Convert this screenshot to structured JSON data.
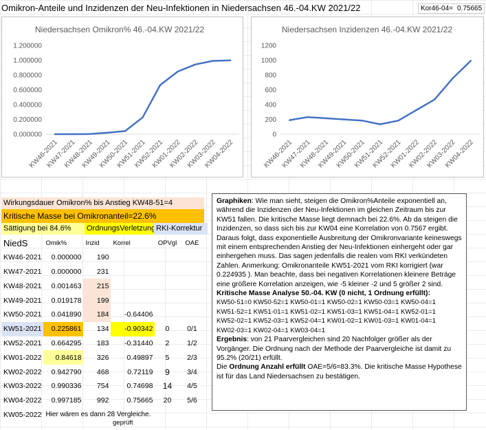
{
  "title": "Omikron-Anteile und Inzidenzen der Neu-Infektionen in Niedersachsen 46.-04.KW 2021/22",
  "kor": {
    "label": "Kor46-04=",
    "value": "0.75665"
  },
  "colors": {
    "line": "#4472c4",
    "peach": "#fbe4d5",
    "orange": "#ffc000",
    "yellow": "#ffff00",
    "lightblue": "#dae3f3",
    "lightyellow": "#ffff99"
  },
  "chart_data": [
    {
      "type": "line",
      "title": "Niedersachsen Omikron%  46.-04.KW    2021/22",
      "categories": [
        "KW46-2021",
        "KW47-2021",
        "KW48-2021",
        "KW49-2021",
        "KW50-2021",
        "KW51-2021",
        "KW52-2021",
        "KW01-2022",
        "KW02-2022",
        "KW03-2022",
        "KW04-2022"
      ],
      "values": [
        0.0,
        0.0,
        0.001463,
        0.019178,
        0.04189,
        0.225861,
        0.664295,
        0.84618,
        0.94279,
        0.990336,
        0.997185
      ],
      "ylim": [
        0,
        1.2
      ],
      "yticks": [
        "0.000000",
        "0.200000",
        "0.400000",
        "0.600000",
        "0.800000",
        "1.000000",
        "1.200000"
      ],
      "grid": false
    },
    {
      "type": "line",
      "title": "Niedersachsen Inzidenzen 46.-04.KW 2021/22",
      "categories": [
        "KW46-2021",
        "KW47-2021",
        "KW48-2021",
        "KW49-2021",
        "KW50-2021",
        "KW51-2021",
        "KW52-2021",
        "KW01-2022",
        "KW02-2022",
        "KW03-2022",
        "KW04-2022"
      ],
      "values": [
        190,
        231,
        215,
        199,
        184,
        134,
        183,
        326,
        468,
        754,
        992
      ],
      "ylim": [
        0,
        1200
      ],
      "yticks": [
        "0",
        "200",
        "400",
        "600",
        "800",
        "1000",
        "1200"
      ],
      "grid": false
    }
  ],
  "left": {
    "wirkungsdauer": "Wirkungsdauer Omikron% bis Anstieg KW48-51=4",
    "kritische": "Kritische Masse bei Omikronanteil=22.6%",
    "saettigung": "Sättigung bei 84.6%",
    "ordnungs": "OrdnungsVerletzung",
    "rki": "RKI-Korrektur",
    "headers": {
      "kw": "NiedS",
      "om": "Omik%",
      "in": "Inzid",
      "ko": "Korrel",
      "op": "OPVgl",
      "oa": "OAE"
    },
    "rows": [
      {
        "kw": "KW46-2021",
        "om": "0.000000",
        "in": "190",
        "ko": "",
        "op": "",
        "oa": ""
      },
      {
        "kw": "KW47-2021",
        "om": "0.000000",
        "in": "231",
        "ko": "",
        "op": "",
        "oa": ""
      },
      {
        "kw": "KW48-2021",
        "om": "0.001463",
        "in": "215",
        "ko": "",
        "op": "",
        "oa": ""
      },
      {
        "kw": "KW49-2021",
        "om": "0.019178",
        "in": "199",
        "ko": "",
        "op": "",
        "oa": ""
      },
      {
        "kw": "KW50-2021",
        "om": "0.041890",
        "in": "184",
        "ko": "-0.64406",
        "op": "",
        "oa": ""
      },
      {
        "kw": "KW51-2021",
        "om": "0.225861",
        "in": "134",
        "ko": "-0.90342",
        "op": "0",
        "oa": "0/1"
      },
      {
        "kw": "KW52-2021",
        "om": "0.664295",
        "in": "183",
        "ko": "-0.31440",
        "op": "2",
        "oa": "1/2"
      },
      {
        "kw": "KW01-2022",
        "om": "0.84618",
        "in": "326",
        "ko": "0.49897",
        "op": "5",
        "oa": "2/3"
      },
      {
        "kw": "KW02-2022",
        "om": "0.942790",
        "in": "468",
        "ko": "0.72119",
        "op": "9",
        "oa": "3/4"
      },
      {
        "kw": "KW03-2022",
        "om": "0.990336",
        "in": "754",
        "ko": "0.74698",
        "op": "14",
        "oa": "4/5"
      },
      {
        "kw": "KW04-2022",
        "om": "0.997185",
        "in": "992",
        "ko": "0.75665",
        "op": "20",
        "oa": "5/6"
      },
      {
        "kw": "KW05-2022",
        "om": "Hier wären es dann 28 Vergleiche.",
        "in": "",
        "ko": "",
        "op": "",
        "oa": ""
      }
    ],
    "geprueft": "geprüft"
  },
  "text": {
    "p1_b": "Graphiken",
    "p1": ": Wie man sieht, steigen die Omikron%Anteile exponentiell an, während die Inzidenzen der Neu-Infektionen im gleichen Zeitraum bis zur KW51 fallen. Die kritische Masse liegt demnach bei 22.6%. Ab da steigen die Inzidenzen, so dass sich bis zur KW04 eine Korrelation von 0.7567 ergibt. Daraus folgt, dass exponentielle Ausbreitung der Omikronvariante keineswegs mit einem entsprechenden Anstieg der Neu-Infektionen einhergeht oder gar einhergehen muss. Das sagen jedenfalls die realen vom RKI verkündeten Zahlen.  Anmerkung: Omikronanteile KW51-2021 vom RKI korrigiert (war 0.224935 ). Man beachte, dass bei negativen Korrelationen kleinere Beträge eine größere Korrelation anzeigen, wie -5 kleiner -2 und 5 größer 2 sind.",
    "p2_b": "Kritische Masse Analyse 50.-04. KW (0 nicht, 1 Ordnung erfüllt):",
    "pairs": [
      "KW50-51=0  KW50-52=1  KW50-01=1  KW50-02=1  KW50-03=1  KW50-04=1",
      "KW51-52=1  KW51-01=1  KW51-02=1  KW51-03=1  KW51-04=1  KW52-01=1",
      "KW52-02=1  KW52-03=1  KW52-04=1  KW01-02=1  KW01-03=1  KW01-04=1",
      "KW02-03=1  KW02-04=1  KW03-04=1"
    ],
    "p3_b": "Ergebnis",
    "p3": ": von 21 Paarvergleichen sind 20 Nachfolger größer als der Vorgänger. Die Ordnung nach der Methode der Paarvergleiche ist damit zu 95.2% (20/21) erfüllt.",
    "p4_a": "Die ",
    "p4_b": "Ordnung Anzahl erfüllt",
    "p4": " OAE=5/6=83.3%. Die kritische Masse Hypothese ist für das Land Niedersachsen zu bestätigen."
  }
}
